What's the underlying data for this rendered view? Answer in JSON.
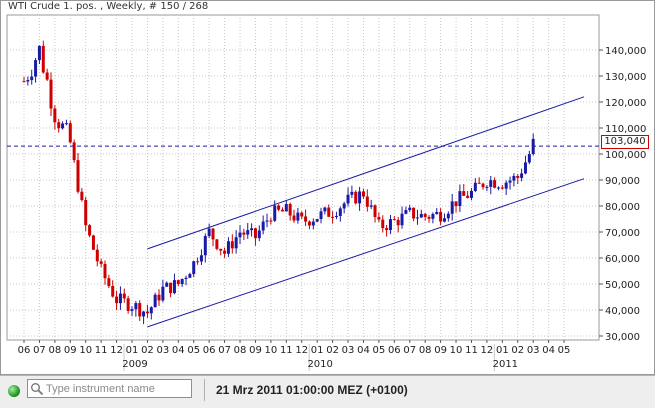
{
  "window": {
    "title": "WTI Crude 1. pos. , Weekly, # 150 / 268"
  },
  "price_label": "103,040",
  "status_bar": {
    "search_placeholder": "Type instrument name",
    "datetime": "21 Mrz 2011 01:00:00  MEZ (+0100)"
  },
  "colors": {
    "up_candle": "#1a1aa8",
    "down_candle": "#cc0000",
    "channel": "#1a1aa8",
    "grid": "#c8c8c8",
    "price_line": "#1a1aa8",
    "price_box_border": "#d00000",
    "status_indicator": "#1f8f1f"
  },
  "chart_data": {
    "type": "candlestick",
    "interval": "weekly",
    "y_ticks": [
      "30,000",
      "40,000",
      "50,000",
      "60,000",
      "70,000",
      "80,000",
      "90,000",
      "100,000",
      "110,000",
      "120,000",
      "130,000",
      "140,000"
    ],
    "ylim": [
      30,
      145
    ],
    "x_month_ticks": [
      "06",
      "07",
      "08",
      "09",
      "10",
      "11",
      "12",
      "01",
      "02",
      "03",
      "04",
      "05",
      "06",
      "07",
      "08",
      "09",
      "10",
      "11",
      "12",
      "01",
      "02",
      "03",
      "04",
      "05",
      "06",
      "07",
      "08",
      "09",
      "10",
      "11",
      "12",
      "01",
      "02",
      "03",
      "04",
      "05"
    ],
    "x_year_labels": [
      "2009",
      "2010",
      "2011"
    ],
    "current_price": 103.04,
    "grid": true,
    "channel": {
      "upper": {
        "from": {
          "date": "2009-02",
          "price": 63.5
        },
        "to": {
          "date": "2011-05",
          "price": 122
        }
      },
      "lower": {
        "from": {
          "date": "2009-02",
          "price": 33.5
        },
        "to": {
          "date": "2011-05",
          "price": 90.5
        }
      }
    },
    "close_path_by_month": [
      [
        "2008-06",
        128
      ],
      [
        "2008-07",
        140
      ],
      [
        "2008-08",
        116
      ],
      [
        "2008-09",
        104
      ],
      [
        "2008-10",
        72
      ],
      [
        "2008-11",
        55
      ],
      [
        "2008-12",
        44
      ],
      [
        "2009-01",
        42
      ],
      [
        "2009-02",
        39
      ],
      [
        "2009-03",
        48
      ],
      [
        "2009-04",
        50
      ],
      [
        "2009-05",
        58
      ],
      [
        "2009-06",
        70
      ],
      [
        "2009-07",
        62
      ],
      [
        "2009-08",
        70
      ],
      [
        "2009-09",
        68
      ],
      [
        "2009-10",
        77
      ],
      [
        "2009-11",
        78
      ],
      [
        "2009-12",
        74
      ],
      [
        "2010-01",
        76
      ],
      [
        "2010-02",
        78
      ],
      [
        "2010-03",
        82
      ],
      [
        "2010-04",
        85
      ],
      [
        "2010-05",
        72
      ],
      [
        "2010-06",
        74
      ],
      [
        "2010-07",
        77
      ],
      [
        "2010-08",
        76
      ],
      [
        "2010-09",
        77
      ],
      [
        "2010-10",
        82
      ],
      [
        "2010-11",
        85
      ],
      [
        "2010-12",
        90
      ],
      [
        "2011-01",
        89
      ],
      [
        "2011-02",
        91
      ],
      [
        "2011-03",
        103
      ]
    ]
  }
}
